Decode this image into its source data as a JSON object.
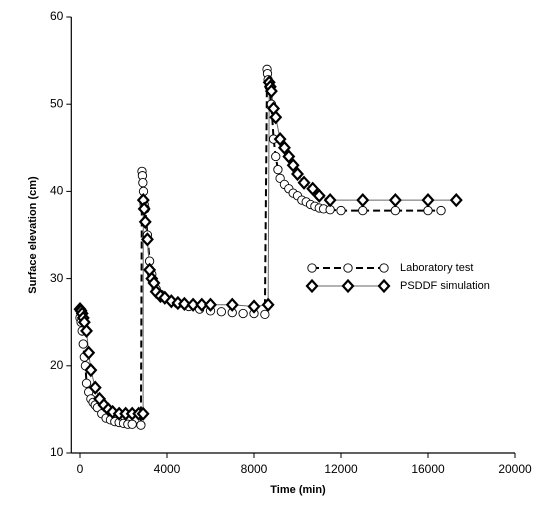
{
  "chart_data": {
    "type": "line",
    "xlabel": "Time (min)",
    "ylabel": "Surface elevation (cm)",
    "xlim": [
      -400,
      20000
    ],
    "xticks": [
      0,
      4000,
      8000,
      12000,
      16000,
      20000
    ],
    "ylim": [
      10,
      60
    ],
    "yticks": [
      10,
      20,
      30,
      40,
      50,
      60
    ],
    "legend": "center-right",
    "series": [
      {
        "name": "Laboratory test",
        "color": "#000000",
        "marker": "circle",
        "line_style": "dashed",
        "x": [
          0,
          50,
          100,
          150,
          200,
          250,
          300,
          400,
          500,
          600,
          700,
          800,
          1000,
          1200,
          1400,
          1600,
          1800,
          2000,
          2200,
          2400,
          2800,
          2850,
          2870,
          2890,
          2920,
          2950,
          3000,
          3100,
          3200,
          3300,
          3400,
          3500,
          3700,
          3900,
          4200,
          4500,
          5000,
          5500,
          6000,
          6500,
          7000,
          7500,
          8000,
          8500,
          8600,
          8620,
          8650,
          8700,
          8800,
          8900,
          9000,
          9100,
          9200,
          9400,
          9600,
          9800,
          10000,
          10200,
          10400,
          10600,
          10800,
          11000,
          11200,
          11500,
          12000,
          13000,
          14500,
          16000,
          16600
        ],
        "values": [
          25.5,
          25,
          24,
          22.5,
          21,
          20,
          18,
          17,
          16.2,
          15.8,
          15.5,
          15.2,
          14.5,
          14,
          13.8,
          13.6,
          13.5,
          13.4,
          13.3,
          13.3,
          13.2,
          42.3,
          41.8,
          41,
          40,
          38.5,
          38,
          35,
          32,
          30.5,
          29.5,
          28.8,
          28.2,
          27.8,
          27.4,
          27.1,
          26.8,
          26.5,
          26.3,
          26.2,
          26.1,
          26,
          26,
          25.9,
          54,
          53.5,
          52.8,
          52,
          50,
          46,
          44,
          42.5,
          41.5,
          40.8,
          40.3,
          39.8,
          39.5,
          39,
          38.8,
          38.5,
          38.3,
          38.1,
          38,
          37.9,
          37.8,
          37.8,
          37.8,
          37.8,
          37.8
        ]
      },
      {
        "name": "PSDDF simulation",
        "color": "#666666",
        "marker": "diamond",
        "line_style": "solid",
        "x": [
          0,
          50,
          100,
          150,
          200,
          300,
          400,
          500,
          700,
          900,
          1100,
          1300,
          1500,
          1800,
          2100,
          2400,
          2700,
          2900,
          2910,
          2950,
          3000,
          3100,
          3200,
          3300,
          3400,
          3500,
          3700,
          3900,
          4200,
          4500,
          4800,
          5200,
          5600,
          6000,
          7000,
          8000,
          8650,
          8700,
          8750,
          8800,
          8900,
          9000,
          9200,
          9400,
          9600,
          9800,
          10000,
          10300,
          10700,
          11000,
          11500,
          13000,
          14500,
          16000,
          17300
        ],
        "values": [
          26.5,
          26.3,
          26,
          25.5,
          25,
          24,
          21.5,
          19.5,
          17.5,
          16.2,
          15.5,
          15,
          14.7,
          14.5,
          14.5,
          14.5,
          14.5,
          14.5,
          39,
          38,
          36.5,
          34.5,
          31,
          30,
          29.5,
          28.5,
          28,
          27.8,
          27.4,
          27.2,
          27.1,
          27,
          27,
          27,
          27,
          26.8,
          27,
          52.5,
          52,
          51.5,
          49.5,
          48.5,
          46,
          45,
          44,
          43,
          42,
          41,
          40.3,
          39.5,
          39,
          39,
          39,
          39,
          39
        ]
      }
    ]
  }
}
